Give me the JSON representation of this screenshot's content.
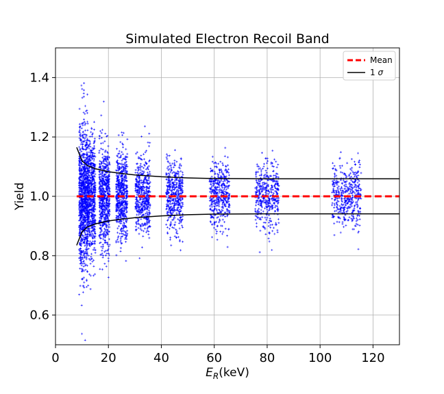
{
  "chart_data": {
    "type": "scatter",
    "title": "Simulated Electron Recoil Band",
    "xlabel_main": "E",
    "xlabel_sub": "R",
    "xlabel_unit": "(keV)",
    "ylabel": "Yield",
    "xlim": [
      0,
      130
    ],
    "ylim": [
      0.5,
      1.5
    ],
    "xticks": [
      0,
      20,
      40,
      60,
      80,
      100,
      120
    ],
    "yticks": [
      0.6,
      0.8,
      1.0,
      1.2,
      1.4
    ],
    "xtick_labels": [
      "0",
      "20",
      "40",
      "60",
      "80",
      "100",
      "120"
    ],
    "ytick_labels": [
      "0.6",
      "0.8",
      "1.0",
      "1.2",
      "1.4"
    ],
    "grid": true,
    "legend_position": "top-right",
    "legend": [
      {
        "label": "Mean",
        "style": "dashed",
        "color": "#ff0000"
      },
      {
        "label": "1 ",
        "label_symbol": "σ",
        "style": "solid",
        "color": "#000000"
      }
    ],
    "mean": {
      "value": 1.0,
      "x_range": [
        8,
        130
      ]
    },
    "sigma_band": {
      "x_range": [
        8,
        130
      ],
      "upper": [
        [
          8,
          1.165
        ],
        [
          10,
          1.12
        ],
        [
          12,
          1.104
        ],
        [
          15,
          1.093
        ],
        [
          20,
          1.083
        ],
        [
          25,
          1.077
        ],
        [
          30,
          1.072
        ],
        [
          40,
          1.066
        ],
        [
          50,
          1.062
        ],
        [
          60,
          1.06
        ],
        [
          80,
          1.059
        ],
        [
          100,
          1.059
        ],
        [
          130,
          1.059
        ]
      ],
      "lower": [
        [
          8,
          0.835
        ],
        [
          10,
          0.88
        ],
        [
          12,
          0.896
        ],
        [
          15,
          0.907
        ],
        [
          20,
          0.917
        ],
        [
          25,
          0.923
        ],
        [
          30,
          0.928
        ],
        [
          40,
          0.934
        ],
        [
          50,
          0.938
        ],
        [
          60,
          0.94
        ],
        [
          80,
          0.941
        ],
        [
          100,
          0.941
        ],
        [
          130,
          0.941
        ]
      ]
    },
    "scatter_series": {
      "name": "",
      "marker": "+",
      "color": "#0000ff",
      "clusters": [
        {
          "x_center": 10.5,
          "x_spread": 1.6,
          "y_mean": 1.0,
          "y_sd": 0.12,
          "count": 900
        },
        {
          "x_center": 13.5,
          "x_spread": 1.6,
          "y_mean": 1.0,
          "y_sd": 0.1,
          "count": 650
        },
        {
          "x_center": 18.5,
          "x_spread": 2.0,
          "y_mean": 1.0,
          "y_sd": 0.085,
          "count": 650
        },
        {
          "x_center": 25.0,
          "x_spread": 2.2,
          "y_mean": 1.0,
          "y_sd": 0.075,
          "count": 550
        },
        {
          "x_center": 33.0,
          "x_spread": 2.8,
          "y_mean": 1.0,
          "y_sd": 0.065,
          "count": 500
        },
        {
          "x_center": 45.0,
          "x_spread": 3.2,
          "y_mean": 1.0,
          "y_sd": 0.06,
          "count": 450
        },
        {
          "x_center": 62.0,
          "x_spread": 3.8,
          "y_mean": 1.0,
          "y_sd": 0.055,
          "count": 420
        },
        {
          "x_center": 80.0,
          "x_spread": 4.5,
          "y_mean": 1.0,
          "y_sd": 0.055,
          "count": 420
        },
        {
          "x_center": 110.0,
          "x_spread": 5.5,
          "y_mean": 1.0,
          "y_sd": 0.055,
          "count": 420
        }
      ]
    }
  }
}
